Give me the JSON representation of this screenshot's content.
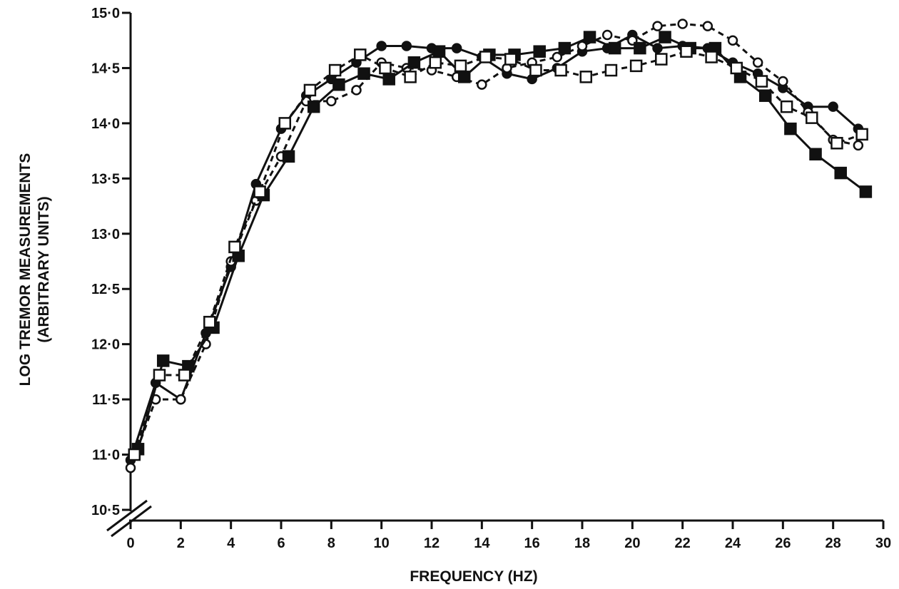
{
  "chart_data": {
    "type": "line",
    "title": "",
    "xlabel": "FREQUENCY (HZ)",
    "ylabel_line1": "LOG TREMOR MEASUREMENTS",
    "ylabel_line2": "(ARBITRARY UNITS)",
    "xlim": [
      0,
      30
    ],
    "ylim": [
      10.5,
      15.0
    ],
    "xticks": [
      "0",
      "2",
      "4",
      "6",
      "8",
      "10",
      "12",
      "14",
      "16",
      "18",
      "20",
      "22",
      "24",
      "26",
      "28",
      "30"
    ],
    "yticks": [
      "10·5",
      "11·0",
      "11·5",
      "12·0",
      "12·5",
      "13·0",
      "13·5",
      "14·0",
      "14·5",
      "15·0"
    ],
    "axis_break": true,
    "grid": false,
    "legend": "none",
    "series": [
      {
        "marker": "filled-circle",
        "line": "solid",
        "color": "#111111",
        "x": [
          0,
          1,
          2,
          3,
          4,
          5,
          6,
          7,
          8,
          9,
          10,
          11,
          12,
          13,
          14,
          15,
          16,
          17,
          18,
          19,
          20,
          21,
          22,
          23,
          24,
          25,
          26,
          27,
          28,
          29
        ],
        "y": [
          10.95,
          11.65,
          11.5,
          12.1,
          12.7,
          13.45,
          13.95,
          14.25,
          14.4,
          14.55,
          14.7,
          14.7,
          14.68,
          14.68,
          14.6,
          14.45,
          14.4,
          14.5,
          14.65,
          14.68,
          14.8,
          14.68,
          14.7,
          14.68,
          14.55,
          14.45,
          14.32,
          14.15,
          14.15,
          13.95
        ]
      },
      {
        "marker": "open-circle",
        "line": "dashed",
        "color": "#111111",
        "x": [
          0,
          1,
          2,
          3,
          4,
          5,
          6,
          7,
          8,
          9,
          10,
          11,
          12,
          13,
          14,
          15,
          16,
          17,
          18,
          19,
          20,
          21,
          22,
          23,
          24,
          25,
          26,
          27,
          28,
          29
        ],
        "y": [
          10.88,
          11.5,
          11.5,
          12.0,
          12.75,
          13.3,
          13.7,
          14.2,
          14.2,
          14.3,
          14.55,
          14.5,
          14.48,
          14.42,
          14.35,
          14.5,
          14.55,
          14.6,
          14.7,
          14.8,
          14.75,
          14.88,
          14.9,
          14.88,
          14.75,
          14.55,
          14.38,
          14.1,
          13.85,
          13.8
        ]
      },
      {
        "marker": "filled-square",
        "line": "solid",
        "color": "#111111",
        "x": [
          0,
          1,
          2,
          3,
          4,
          5,
          6,
          7,
          8,
          9,
          10,
          11,
          12,
          13,
          14,
          15,
          16,
          17,
          18,
          19,
          20,
          21,
          22,
          23,
          24,
          25,
          26,
          27,
          28,
          29
        ],
        "y": [
          11.05,
          11.85,
          11.8,
          12.15,
          12.8,
          13.35,
          13.7,
          14.15,
          14.35,
          14.45,
          14.4,
          14.55,
          14.65,
          14.42,
          14.62,
          14.62,
          14.65,
          14.68,
          14.78,
          14.68,
          14.68,
          14.78,
          14.68,
          14.68,
          14.42,
          14.25,
          13.95,
          13.72,
          13.55,
          13.38
        ]
      },
      {
        "marker": "open-square",
        "line": "dashed",
        "color": "#111111",
        "x": [
          0,
          1,
          2,
          3,
          4,
          5,
          6,
          7,
          8,
          9,
          10,
          11,
          12,
          13,
          14,
          15,
          16,
          17,
          18,
          19,
          20,
          21,
          22,
          23,
          24,
          25,
          26,
          27,
          28,
          29
        ],
        "y": [
          11.0,
          11.72,
          11.72,
          12.2,
          12.88,
          13.38,
          14.0,
          14.3,
          14.48,
          14.62,
          14.5,
          14.42,
          14.55,
          14.52,
          14.6,
          14.58,
          14.48,
          14.48,
          14.42,
          14.48,
          14.52,
          14.58,
          14.65,
          14.6,
          14.5,
          14.38,
          14.15,
          14.05,
          13.82,
          13.9
        ]
      }
    ]
  }
}
